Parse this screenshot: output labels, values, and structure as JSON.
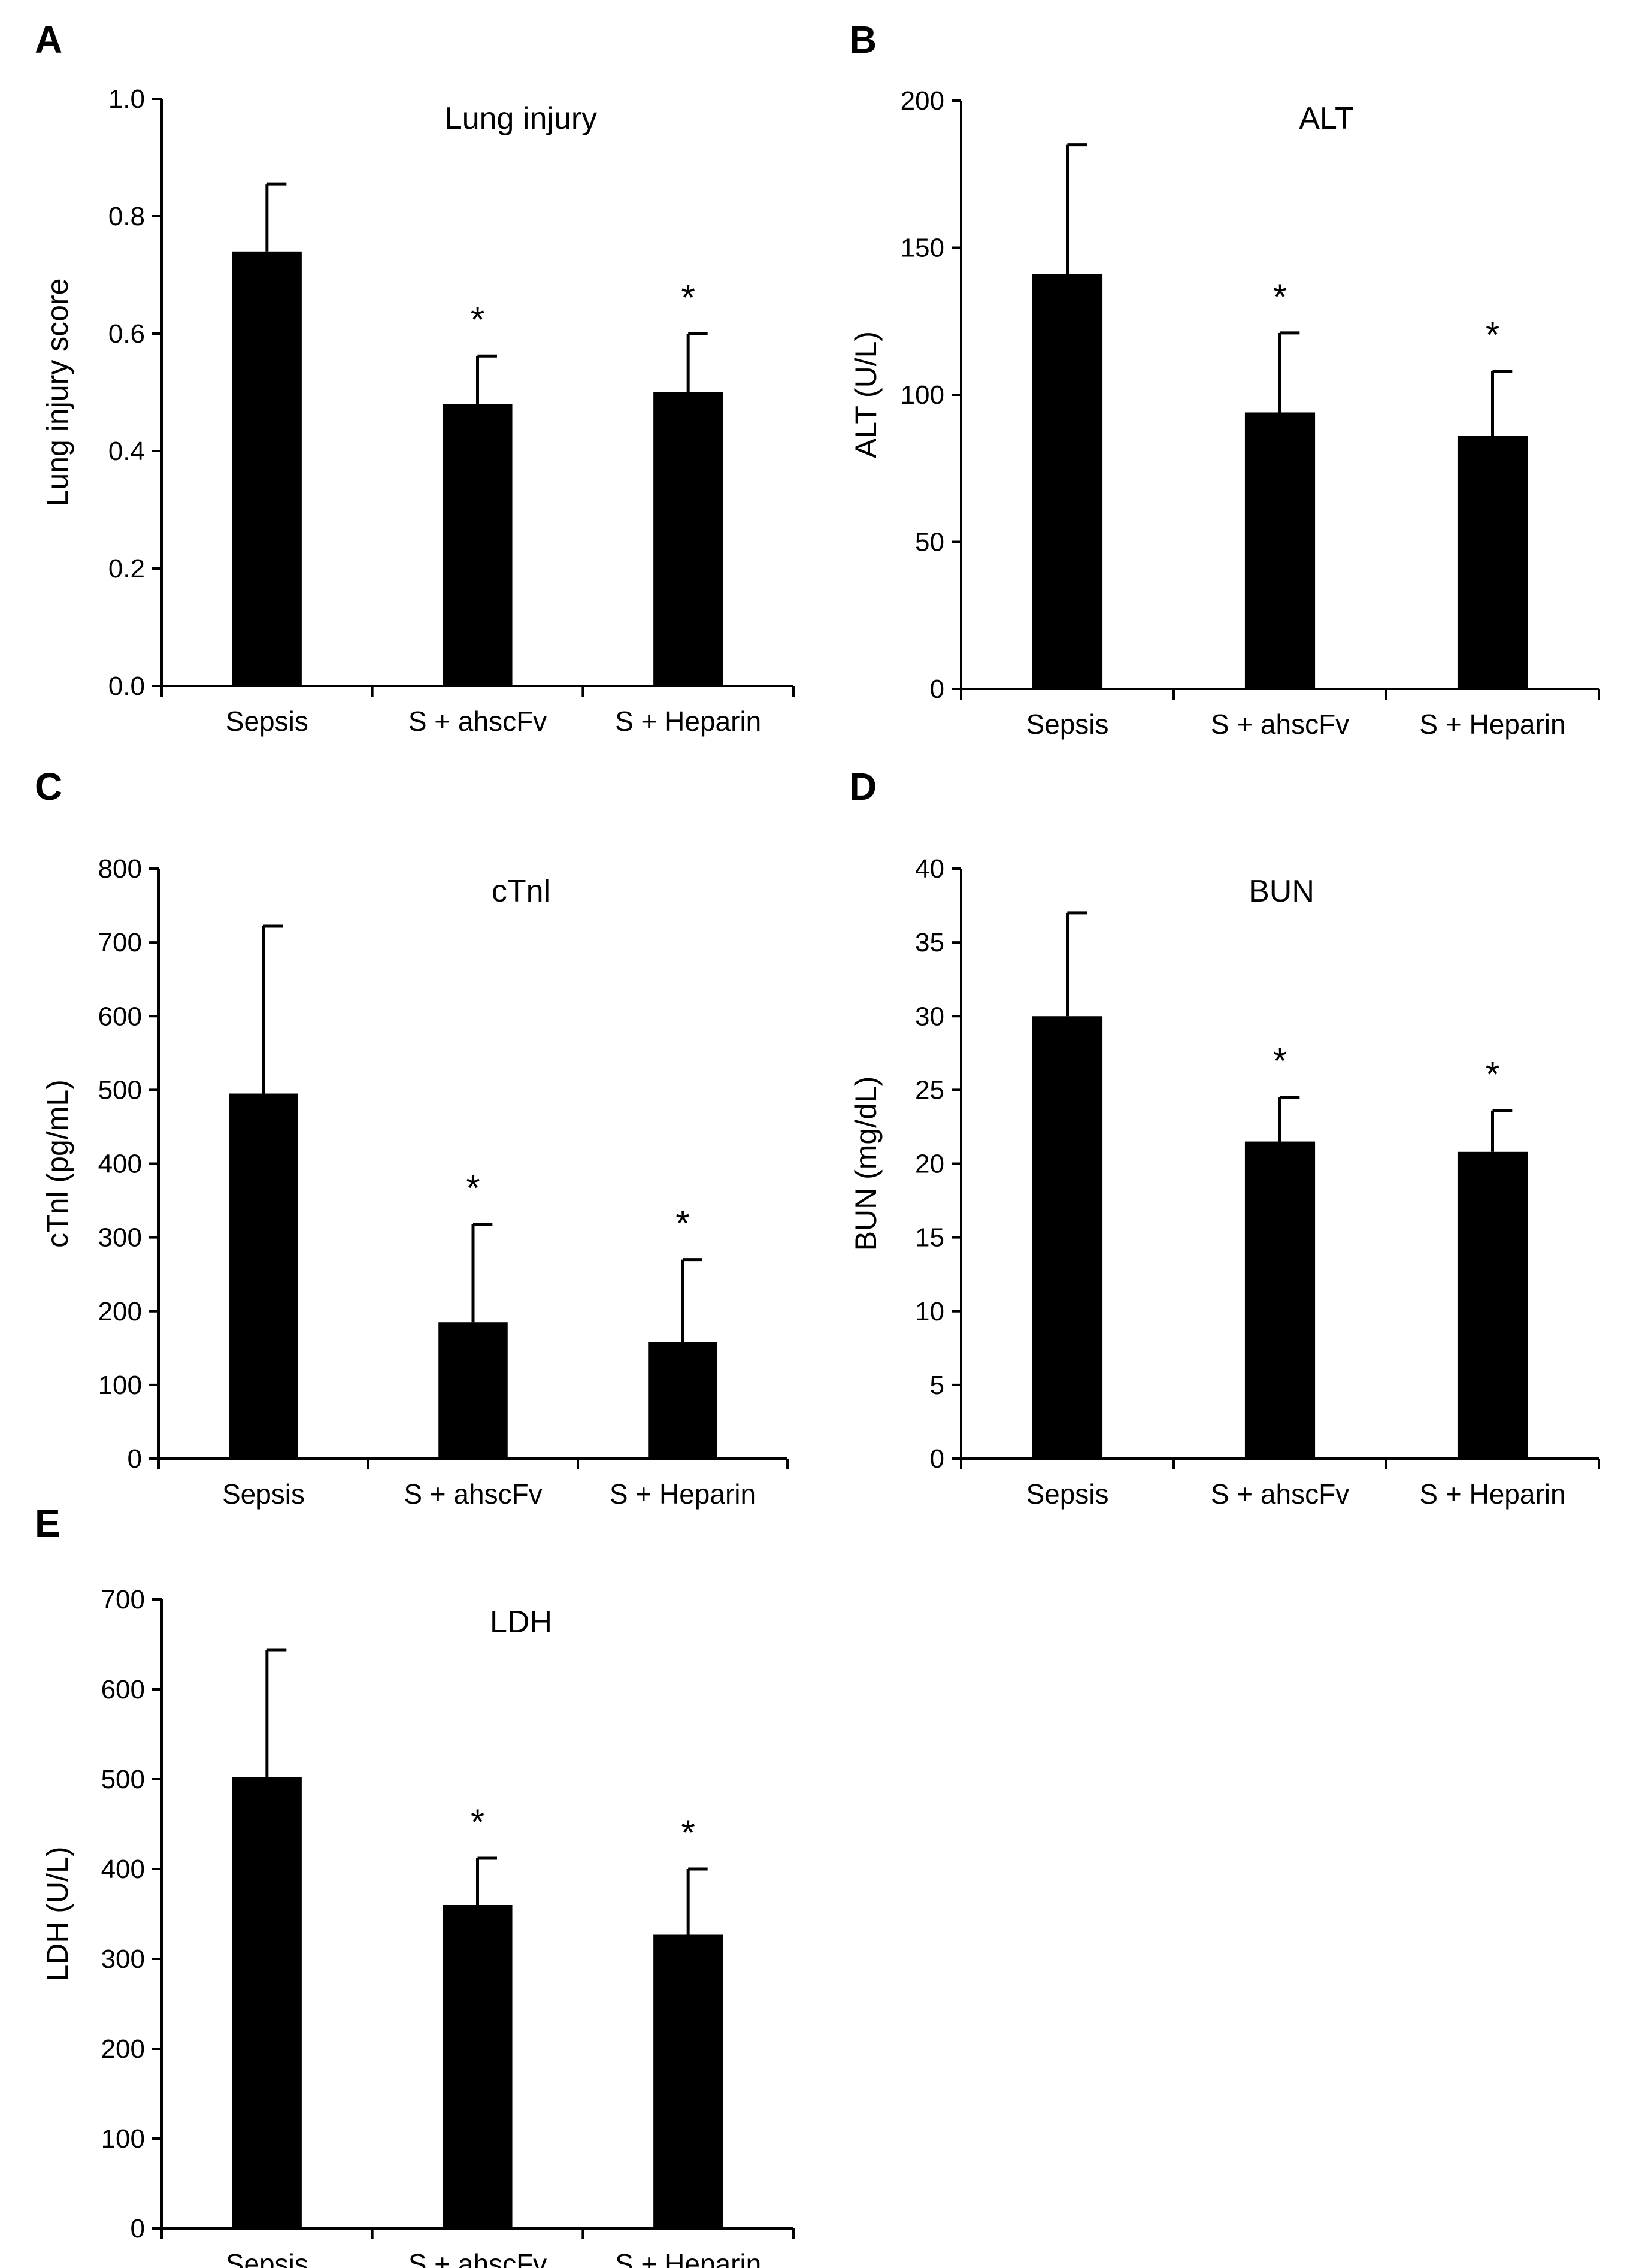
{
  "chart_data": [
    {
      "panel": "A",
      "type": "bar",
      "title": "Lung injury",
      "ylabel": "Lung injury score",
      "xlabel": "",
      "ylim": [
        0,
        1.0
      ],
      "yticks": [
        "0.0",
        "0.2",
        "0.4",
        "0.6",
        "0.8",
        "1.0"
      ],
      "categories": [
        "Sepsis",
        "S + ahscFv",
        "S + Heparin"
      ],
      "values": [
        0.74,
        0.48,
        0.5
      ],
      "errors": [
        0.115,
        0.082,
        0.1
      ],
      "significance": [
        "",
        "*",
        "*"
      ]
    },
    {
      "panel": "B",
      "type": "bar",
      "title": "ALT",
      "ylabel": "ALT (U/L)",
      "xlabel": "",
      "ylim": [
        0,
        200
      ],
      "yticks": [
        "0",
        "50",
        "100",
        "150",
        "200"
      ],
      "categories": [
        "Sepsis",
        "S + ahscFv",
        "S + Heparin"
      ],
      "values": [
        141,
        94,
        86
      ],
      "errors": [
        44,
        27,
        22
      ],
      "significance": [
        "",
        "*",
        "*"
      ]
    },
    {
      "panel": "C",
      "type": "bar",
      "title": "cTnl",
      "ylabel": "cTnl (pg/mL)",
      "xlabel": "",
      "ylim": [
        0,
        800
      ],
      "yticks": [
        "0",
        "100",
        "200",
        "300",
        "400",
        "500",
        "600",
        "700",
        "800"
      ],
      "categories": [
        "Sepsis",
        "S + ahscFv",
        "S + Heparin"
      ],
      "values": [
        495,
        185,
        158
      ],
      "errors": [
        227,
        133,
        112
      ],
      "significance": [
        "",
        "*",
        "*"
      ]
    },
    {
      "panel": "D",
      "type": "bar",
      "title": "BUN",
      "ylabel": "BUN (mg/dL)",
      "xlabel": "",
      "ylim": [
        0,
        40
      ],
      "yticks": [
        "0",
        "5",
        "10",
        "15",
        "20",
        "25",
        "30",
        "35",
        "40"
      ],
      "categories": [
        "Sepsis",
        "S + ahscFv",
        "S + Heparin"
      ],
      "values": [
        30,
        21.5,
        20.8
      ],
      "errors": [
        7,
        3,
        2.8
      ],
      "significance": [
        "",
        "*",
        "*"
      ]
    },
    {
      "panel": "E",
      "type": "bar",
      "title": "LDH",
      "ylabel": "LDH (U/L)",
      "xlabel": "",
      "ylim": [
        0,
        700
      ],
      "yticks": [
        "0",
        "100",
        "200",
        "300",
        "400",
        "500",
        "600",
        "700"
      ],
      "categories": [
        "Sepsis",
        "S + ahscFv",
        "S + Heparin"
      ],
      "values": [
        502,
        360,
        327
      ],
      "errors": [
        142,
        52,
        73
      ],
      "significance": [
        "",
        "*",
        "*"
      ]
    }
  ],
  "colors": {
    "bar": "#000000",
    "axis": "#000000",
    "background": "#ffffff"
  }
}
